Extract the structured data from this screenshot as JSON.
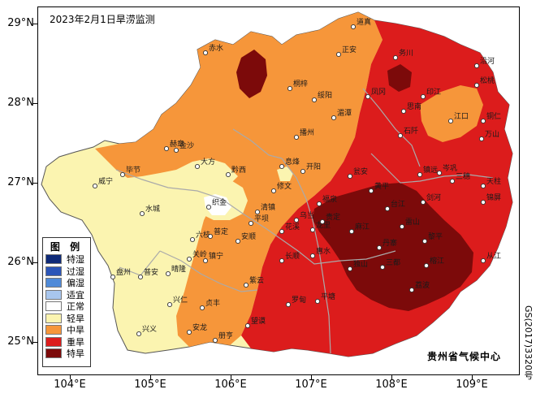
{
  "title": "2023年2月1日旱涝监测",
  "credit": "贵州省气候中心",
  "map_code": "GS(2017)3320号",
  "y_ticks": [
    {
      "label": "29°N"
    },
    {
      "label": "28°N"
    },
    {
      "label": "27°N"
    },
    {
      "label": "26°N"
    },
    {
      "label": "25°N"
    }
  ],
  "x_ticks": [
    {
      "label": "104°E"
    },
    {
      "label": "105°E"
    },
    {
      "label": "106°E"
    },
    {
      "label": "107°E"
    },
    {
      "label": "108°E"
    },
    {
      "label": "109°E"
    }
  ],
  "legend": {
    "title": "图 例",
    "items": [
      {
        "label": "特湿",
        "color": "#0f2a78"
      },
      {
        "label": "过湿",
        "color": "#2b55b8"
      },
      {
        "label": "偏湿",
        "color": "#4f8ad8"
      },
      {
        "label": "适宜",
        "color": "#a8c6ee"
      },
      {
        "label": "正常",
        "color": "#ffffff"
      },
      {
        "label": "轻旱",
        "color": "#fbf4b0"
      },
      {
        "label": "中旱",
        "color": "#f6963a"
      },
      {
        "label": "重旱",
        "color": "#dc1c1c"
      },
      {
        "label": "特旱",
        "color": "#7c0a0a"
      }
    ]
  },
  "cities": [
    {
      "name": "道真"
    },
    {
      "name": "赤水"
    },
    {
      "name": "正安"
    },
    {
      "name": "务川"
    },
    {
      "name": "沿河"
    },
    {
      "name": "桐梓"
    },
    {
      "name": "绥阳"
    },
    {
      "name": "凤冈"
    },
    {
      "name": "印江"
    },
    {
      "name": "松桃"
    },
    {
      "name": "湄潭"
    },
    {
      "name": "思南"
    },
    {
      "name": "江口"
    },
    {
      "name": "铜仁"
    },
    {
      "name": "万山"
    },
    {
      "name": "播州"
    },
    {
      "name": "石阡"
    },
    {
      "name": "金沙"
    },
    {
      "name": "毕节"
    },
    {
      "name": "大方"
    },
    {
      "name": "黔西"
    },
    {
      "name": "息烽"
    },
    {
      "name": "开阳"
    },
    {
      "name": "瓮安"
    },
    {
      "name": "镇远"
    },
    {
      "name": "岑巩"
    },
    {
      "name": "三穗"
    },
    {
      "name": "天柱"
    },
    {
      "name": "威宁"
    },
    {
      "name": "赫章"
    },
    {
      "name": "织金"
    },
    {
      "name": "修文"
    },
    {
      "name": "福泉"
    },
    {
      "name": "黄平"
    },
    {
      "name": "剑河"
    },
    {
      "name": "锦屏"
    },
    {
      "name": "水城"
    },
    {
      "name": "清镇"
    },
    {
      "name": "乌当"
    },
    {
      "name": "龙里"
    },
    {
      "name": "麻江"
    },
    {
      "name": "台江"
    },
    {
      "name": "黎平"
    },
    {
      "name": "六枝"
    },
    {
      "name": "普定"
    },
    {
      "name": "安顺"
    },
    {
      "name": "平坝"
    },
    {
      "name": "花溪"
    },
    {
      "name": "贵定"
    },
    {
      "name": "丹寨"
    },
    {
      "name": "雷山"
    },
    {
      "name": "榕江"
    },
    {
      "name": "从江"
    },
    {
      "name": "盘州"
    },
    {
      "name": "普安"
    },
    {
      "name": "晴隆"
    },
    {
      "name": "关岭"
    },
    {
      "name": "镇宁"
    },
    {
      "name": "长顺"
    },
    {
      "name": "惠水"
    },
    {
      "name": "独山"
    },
    {
      "name": "三都"
    },
    {
      "name": "荔波"
    },
    {
      "name": "兴仁"
    },
    {
      "name": "贞丰"
    },
    {
      "name": "紫云"
    },
    {
      "name": "罗甸"
    },
    {
      "name": "平塘"
    },
    {
      "name": "安龙"
    },
    {
      "name": "册亨"
    },
    {
      "name": "望谟"
    },
    {
      "name": "兴义"
    }
  ]
}
